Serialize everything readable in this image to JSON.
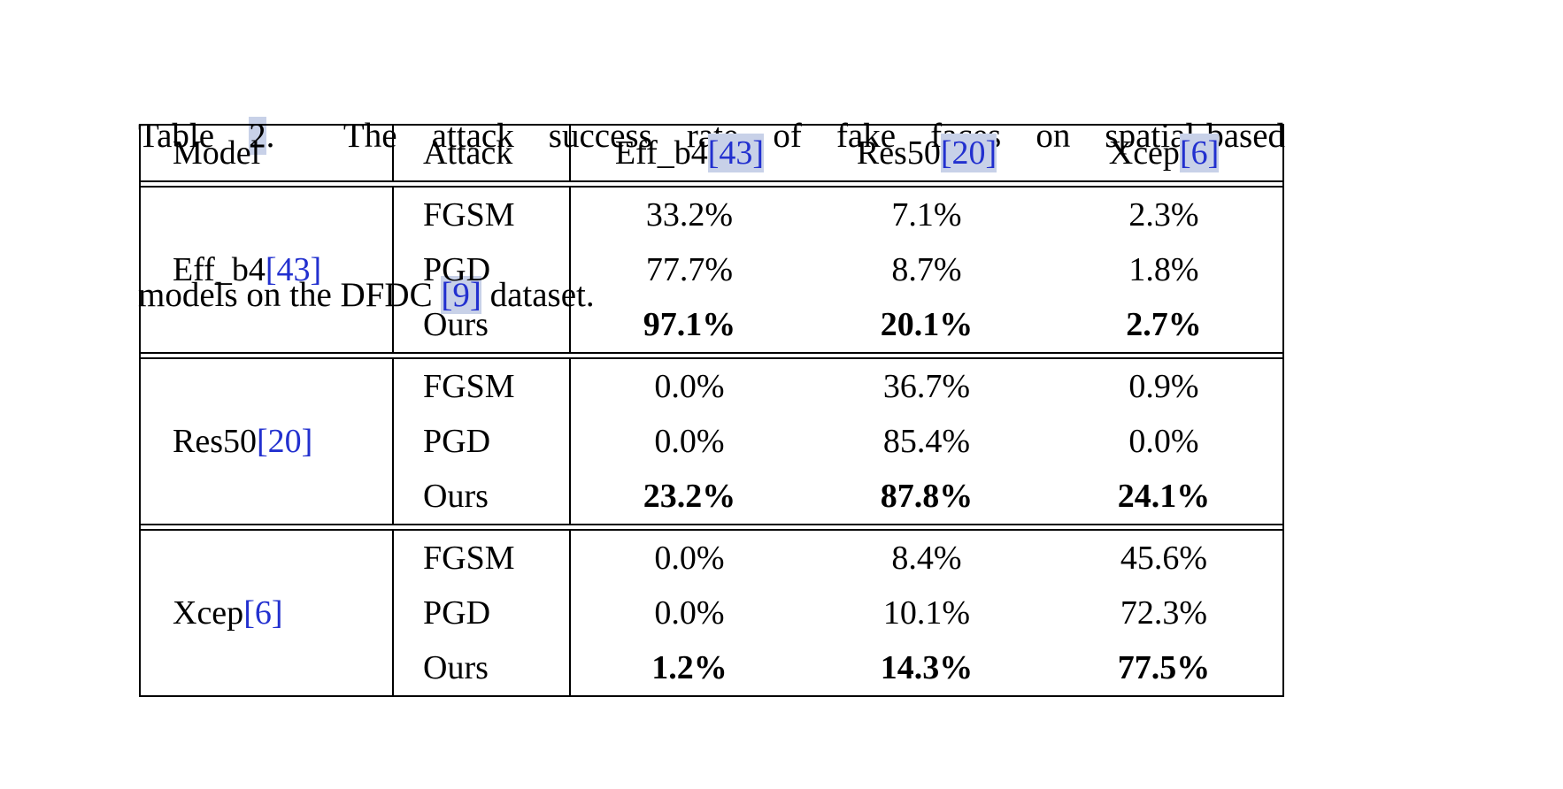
{
  "colors": {
    "link_blue": "#2230cf",
    "link_highlight": "#c8d1e8",
    "background": "#ffffff",
    "text": "#000000"
  },
  "caption": {
    "line1": {
      "prefix": "Table ",
      "number": "2",
      "rest": ".  The attack success rate of fake faces on spatial-based"
    },
    "line2": {
      "before_ref": "models on the DFDC ",
      "ref": "[9]",
      "after_ref": " dataset."
    }
  },
  "table": {
    "headers": {
      "model": "Model",
      "attack": "Attack",
      "col1": {
        "name": "Eff_b4 ",
        "ref": "[43]"
      },
      "col2": {
        "name": "Res50 ",
        "ref": "[20]"
      },
      "col3": {
        "name": "Xcep ",
        "ref": "[6]"
      }
    },
    "groups": [
      {
        "model": {
          "name": "Eff_b4 ",
          "ref": "[43]"
        },
        "rows": [
          {
            "attack": "FGSM",
            "values": [
              "33.2%",
              "7.1%",
              "2.3%"
            ]
          },
          {
            "attack": "PGD",
            "values": [
              "77.7%",
              "8.7%",
              "1.8%"
            ]
          },
          {
            "attack": "Ours",
            "values": [
              "97.1%",
              "20.1%",
              "2.7%"
            ],
            "bold": true
          }
        ]
      },
      {
        "model": {
          "name": "Res50 ",
          "ref": "[20]"
        },
        "rows": [
          {
            "attack": "FGSM",
            "values": [
              "0.0%",
              "36.7%",
              "0.9%"
            ]
          },
          {
            "attack": "PGD",
            "values": [
              "0.0%",
              "85.4%",
              "0.0%"
            ]
          },
          {
            "attack": "Ours",
            "values": [
              "23.2%",
              "87.8%",
              "24.1%"
            ],
            "bold": true
          }
        ]
      },
      {
        "model": {
          "name": "Xcep ",
          "ref": "[6]"
        },
        "rows": [
          {
            "attack": "FGSM",
            "values": [
              "0.0%",
              "8.4%",
              "45.6%"
            ]
          },
          {
            "attack": "PGD",
            "values": [
              "0.0%",
              "10.1%",
              "72.3%"
            ]
          },
          {
            "attack": "Ours",
            "values": [
              "1.2%",
              "14.3%",
              "77.5%"
            ],
            "bold": true
          }
        ]
      }
    ]
  }
}
